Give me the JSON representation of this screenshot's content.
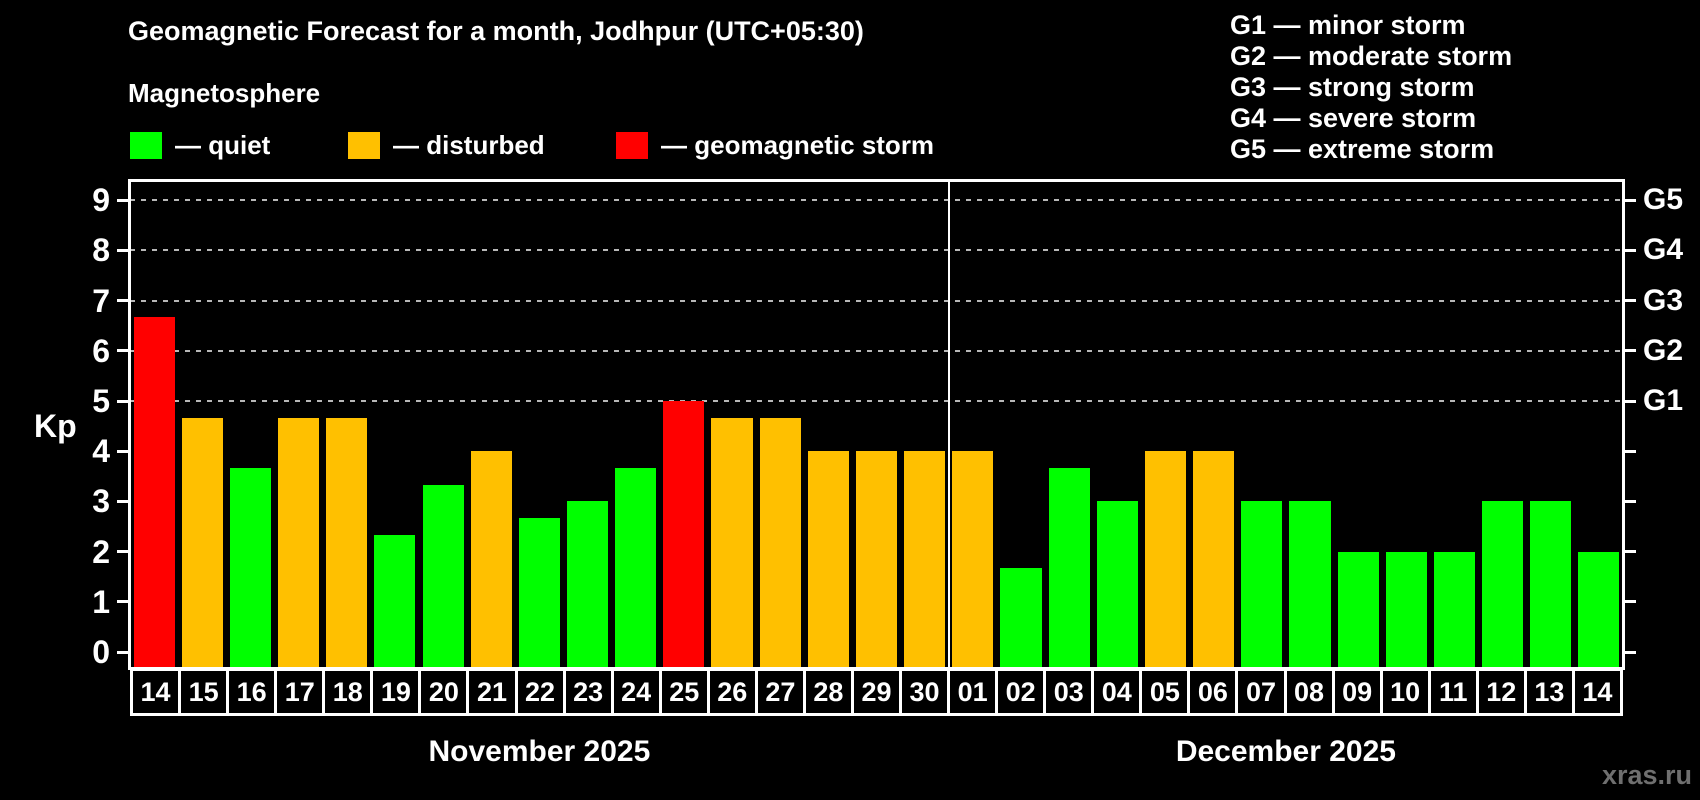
{
  "header": {
    "title": "Geomagnetic Forecast for a month, Jodhpur (UTC+05:30)",
    "subtitle": "Magnetosphere"
  },
  "colors": {
    "quiet": "#00ff00",
    "disturbed": "#ffc000",
    "storm": "#ff0000",
    "background": "#000000",
    "axis": "#ffffff",
    "gridline": "#b8b8b8",
    "watermark": "#6f6f6f"
  },
  "legend": {
    "items": [
      {
        "status": "quiet",
        "label": "— quiet"
      },
      {
        "status": "disturbed",
        "label": "— disturbed"
      },
      {
        "status": "storm",
        "label": "— geomagnetic storm"
      }
    ]
  },
  "g_legend": {
    "items": [
      {
        "label": "G1 — minor storm"
      },
      {
        "label": "G2 — moderate storm"
      },
      {
        "label": "G3 — strong storm"
      },
      {
        "label": "G4 — severe storm"
      },
      {
        "label": "G5 — extreme storm"
      }
    ]
  },
  "watermark": "xras.ru",
  "chart_data": {
    "type": "bar",
    "title": "Geomagnetic Forecast for a month, Jodhpur (UTC+05:30)",
    "ylabel": "Kp",
    "xlabel": "",
    "ylim": [
      0,
      9
    ],
    "yticks": [
      0,
      1,
      2,
      3,
      4,
      5,
      6,
      7,
      8,
      9
    ],
    "gridlines_kp": [
      5,
      6,
      7,
      8,
      9
    ],
    "grid": "dashed horizontal at storm levels only",
    "legend_position": "top",
    "right_axis_labels": [
      {
        "kp": 5,
        "text": "G1"
      },
      {
        "kp": 6,
        "text": "G2"
      },
      {
        "kp": 7,
        "text": "G3"
      },
      {
        "kp": 8,
        "text": "G4"
      },
      {
        "kp": 9,
        "text": "G5"
      }
    ],
    "months": [
      {
        "label": "November 2025",
        "days": 17
      },
      {
        "label": "December 2025",
        "days": 14
      }
    ],
    "categories": [
      "14",
      "15",
      "16",
      "17",
      "18",
      "19",
      "20",
      "21",
      "22",
      "23",
      "24",
      "25",
      "26",
      "27",
      "28",
      "29",
      "30",
      "01",
      "02",
      "03",
      "04",
      "05",
      "06",
      "07",
      "08",
      "09",
      "10",
      "11",
      "12",
      "13",
      "14"
    ],
    "bars": [
      {
        "day": "14",
        "month": "November 2025",
        "kp": 6.67,
        "status": "storm"
      },
      {
        "day": "15",
        "month": "November 2025",
        "kp": 4.67,
        "status": "disturbed"
      },
      {
        "day": "16",
        "month": "November 2025",
        "kp": 3.67,
        "status": "quiet"
      },
      {
        "day": "17",
        "month": "November 2025",
        "kp": 4.67,
        "status": "disturbed"
      },
      {
        "day": "18",
        "month": "November 2025",
        "kp": 4.67,
        "status": "disturbed"
      },
      {
        "day": "19",
        "month": "November 2025",
        "kp": 2.33,
        "status": "quiet"
      },
      {
        "day": "20",
        "month": "November 2025",
        "kp": 3.33,
        "status": "quiet"
      },
      {
        "day": "21",
        "month": "November 2025",
        "kp": 4.0,
        "status": "disturbed"
      },
      {
        "day": "22",
        "month": "November 2025",
        "kp": 2.67,
        "status": "quiet"
      },
      {
        "day": "23",
        "month": "November 2025",
        "kp": 3.0,
        "status": "quiet"
      },
      {
        "day": "24",
        "month": "November 2025",
        "kp": 3.67,
        "status": "quiet"
      },
      {
        "day": "25",
        "month": "November 2025",
        "kp": 5.0,
        "status": "storm"
      },
      {
        "day": "26",
        "month": "November 2025",
        "kp": 4.67,
        "status": "disturbed"
      },
      {
        "day": "27",
        "month": "November 2025",
        "kp": 4.67,
        "status": "disturbed"
      },
      {
        "day": "28",
        "month": "November 2025",
        "kp": 4.0,
        "status": "disturbed"
      },
      {
        "day": "29",
        "month": "November 2025",
        "kp": 4.0,
        "status": "disturbed"
      },
      {
        "day": "30",
        "month": "November 2025",
        "kp": 4.0,
        "status": "disturbed"
      },
      {
        "day": "01",
        "month": "December 2025",
        "kp": 4.0,
        "status": "disturbed"
      },
      {
        "day": "02",
        "month": "December 2025",
        "kp": 1.67,
        "status": "quiet"
      },
      {
        "day": "03",
        "month": "December 2025",
        "kp": 3.67,
        "status": "quiet"
      },
      {
        "day": "04",
        "month": "December 2025",
        "kp": 3.0,
        "status": "quiet"
      },
      {
        "day": "05",
        "month": "December 2025",
        "kp": 4.0,
        "status": "disturbed"
      },
      {
        "day": "06",
        "month": "December 2025",
        "kp": 4.0,
        "status": "disturbed"
      },
      {
        "day": "07",
        "month": "December 2025",
        "kp": 3.0,
        "status": "quiet"
      },
      {
        "day": "08",
        "month": "December 2025",
        "kp": 3.0,
        "status": "quiet"
      },
      {
        "day": "09",
        "month": "December 2025",
        "kp": 2.0,
        "status": "quiet"
      },
      {
        "day": "10",
        "month": "December 2025",
        "kp": 2.0,
        "status": "quiet"
      },
      {
        "day": "11",
        "month": "December 2025",
        "kp": 2.0,
        "status": "quiet"
      },
      {
        "day": "12",
        "month": "December 2025",
        "kp": 3.0,
        "status": "quiet"
      },
      {
        "day": "13",
        "month": "December 2025",
        "kp": 3.0,
        "status": "quiet"
      },
      {
        "day": "14",
        "month": "December 2025",
        "kp": 2.0,
        "status": "quiet"
      }
    ]
  }
}
